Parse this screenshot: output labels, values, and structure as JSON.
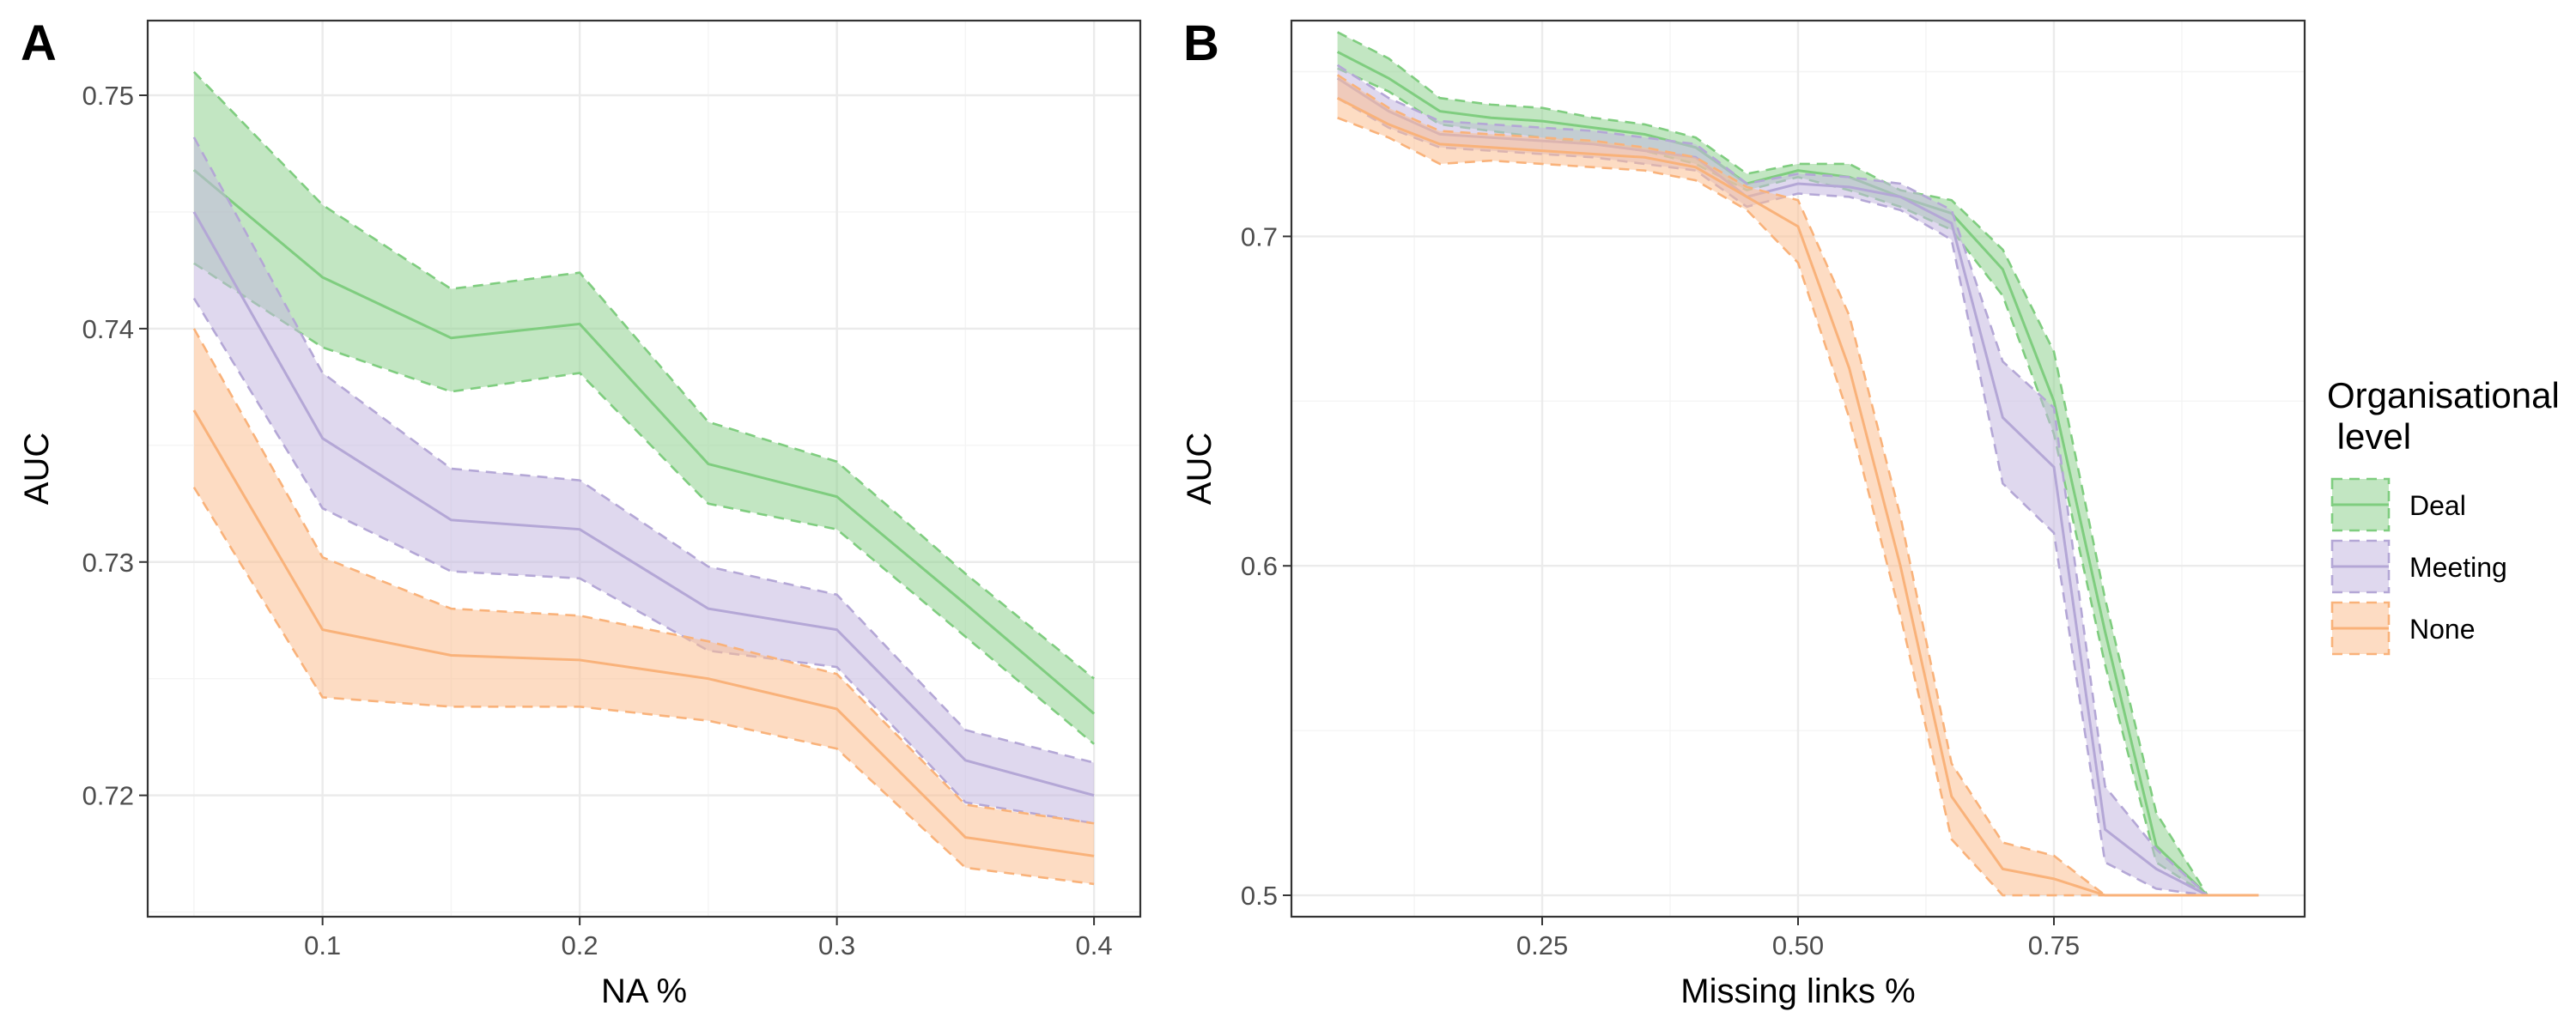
{
  "chart_data": [
    {
      "type": "line",
      "panel_label": "A",
      "title": "",
      "xlabel": "NA %",
      "ylabel": "AUC",
      "xlim": [
        0.032,
        0.418
      ],
      "ylim": [
        0.7148,
        0.7532
      ],
      "xticks": [
        0.1,
        0.2,
        0.3,
        0.4
      ],
      "xtick_labels": [
        "0.1",
        "0.2",
        "0.3",
        "0.4"
      ],
      "yticks": [
        0.72,
        0.73,
        0.74,
        0.75
      ],
      "ytick_labels": [
        "0.72",
        "0.73",
        "0.74",
        "0.75"
      ],
      "grid": true,
      "x": [
        0.05,
        0.1,
        0.15,
        0.2,
        0.25,
        0.3,
        0.35,
        0.4
      ],
      "series": [
        {
          "name": "Deal",
          "values": [
            0.7468,
            0.7422,
            0.7396,
            0.7402,
            0.7342,
            0.7328,
            0.7282,
            0.7235
          ],
          "lower": [
            0.7428,
            0.7392,
            0.7373,
            0.7381,
            0.7325,
            0.7314,
            0.7268,
            0.7222
          ],
          "upper": [
            0.751,
            0.7453,
            0.7417,
            0.7424,
            0.736,
            0.7343,
            0.7295,
            0.725
          ]
        },
        {
          "name": "Meeting",
          "values": [
            0.745,
            0.7353,
            0.7318,
            0.7314,
            0.728,
            0.7271,
            0.7215,
            0.72
          ],
          "lower": [
            0.7413,
            0.7323,
            0.7296,
            0.7293,
            0.7262,
            0.7255,
            0.7197,
            0.7188
          ],
          "upper": [
            0.7482,
            0.7381,
            0.734,
            0.7335,
            0.7298,
            0.7286,
            0.7228,
            0.7214
          ]
        },
        {
          "name": "None",
          "values": [
            0.7365,
            0.7271,
            0.726,
            0.7258,
            0.725,
            0.7237,
            0.7182,
            0.7174
          ],
          "lower": [
            0.7332,
            0.7242,
            0.7238,
            0.7238,
            0.7232,
            0.722,
            0.7169,
            0.7162
          ],
          "upper": [
            0.74,
            0.7302,
            0.728,
            0.7277,
            0.7266,
            0.7252,
            0.7196,
            0.7188
          ]
        }
      ]
    },
    {
      "type": "line",
      "panel_label": "B",
      "title": "",
      "xlabel": "Missing links %",
      "ylabel": "AUC",
      "xlim": [
        0.005,
        0.995
      ],
      "ylim": [
        0.4935,
        0.7655
      ],
      "xticks": [
        0.25,
        0.5,
        0.75
      ],
      "xtick_labels": [
        "0.25",
        "0.50",
        "0.75"
      ],
      "yticks": [
        0.5,
        0.6,
        0.7
      ],
      "ytick_labels": [
        "0.5",
        "0.6",
        "0.7"
      ],
      "grid": true,
      "series": [
        {
          "name": "Deal",
          "x": [
            0.05,
            0.1,
            0.15,
            0.2,
            0.25,
            0.3,
            0.35,
            0.4,
            0.45,
            0.5,
            0.55,
            0.6,
            0.65,
            0.7,
            0.75,
            0.8,
            0.85,
            0.9
          ],
          "values": [
            0.756,
            0.748,
            0.738,
            0.736,
            0.735,
            0.733,
            0.731,
            0.727,
            0.716,
            0.72,
            0.718,
            0.712,
            0.707,
            0.69,
            0.65,
            0.58,
            0.515,
            0.5
          ],
          "lower": [
            0.751,
            0.744,
            0.734,
            0.732,
            0.73,
            0.728,
            0.726,
            0.722,
            0.714,
            0.718,
            0.714,
            0.709,
            0.702,
            0.682,
            0.64,
            0.57,
            0.51,
            0.5
          ],
          "upper": [
            0.762,
            0.754,
            0.742,
            0.74,
            0.739,
            0.736,
            0.734,
            0.73,
            0.719,
            0.722,
            0.722,
            0.714,
            0.711,
            0.696,
            0.665,
            0.59,
            0.525,
            0.5
          ]
        },
        {
          "name": "Meeting",
          "x": [
            0.05,
            0.1,
            0.15,
            0.2,
            0.25,
            0.3,
            0.35,
            0.4,
            0.45,
            0.5,
            0.55,
            0.6,
            0.65,
            0.7,
            0.75,
            0.8,
            0.85,
            0.9
          ],
          "values": [
            0.748,
            0.738,
            0.731,
            0.73,
            0.729,
            0.728,
            0.726,
            0.724,
            0.712,
            0.716,
            0.715,
            0.712,
            0.704,
            0.645,
            0.63,
            0.52,
            0.508,
            0.5
          ],
          "lower": [
            0.742,
            0.733,
            0.727,
            0.726,
            0.725,
            0.724,
            0.722,
            0.72,
            0.709,
            0.713,
            0.712,
            0.708,
            0.699,
            0.625,
            0.61,
            0.51,
            0.502,
            0.5
          ],
          "upper": [
            0.752,
            0.742,
            0.735,
            0.734,
            0.733,
            0.732,
            0.73,
            0.728,
            0.716,
            0.719,
            0.718,
            0.716,
            0.708,
            0.662,
            0.648,
            0.533,
            0.514,
            0.5
          ]
        },
        {
          "name": "None",
          "x": [
            0.05,
            0.1,
            0.15,
            0.2,
            0.25,
            0.3,
            0.35,
            0.4,
            0.45,
            0.5,
            0.55,
            0.6,
            0.65,
            0.7,
            0.75,
            0.8,
            0.85,
            0.9,
            0.95
          ],
          "values": [
            0.742,
            0.734,
            0.728,
            0.727,
            0.726,
            0.725,
            0.724,
            0.721,
            0.712,
            0.703,
            0.66,
            0.6,
            0.53,
            0.508,
            0.505,
            0.5,
            0.5,
            0.5,
            0.5
          ],
          "lower": [
            0.736,
            0.73,
            0.722,
            0.723,
            0.722,
            0.721,
            0.72,
            0.717,
            0.708,
            0.692,
            0.645,
            0.585,
            0.517,
            0.5,
            0.5,
            0.5,
            0.5,
            0.5,
            0.5
          ],
          "upper": [
            0.749,
            0.739,
            0.732,
            0.731,
            0.73,
            0.729,
            0.727,
            0.724,
            0.715,
            0.711,
            0.676,
            0.615,
            0.54,
            0.516,
            0.512,
            0.5,
            0.5,
            0.5,
            0.5
          ]
        }
      ]
    }
  ],
  "legend": {
    "title_line1": "Organisational",
    "title_line2": " level",
    "entries": [
      "Deal",
      "Meeting",
      "None"
    ]
  },
  "colors": {
    "Deal": {
      "line": "#7fcd7f",
      "fill": "#8fd18f",
      "fill_opacity": 0.55
    },
    "Meeting": {
      "line": "#b4a7d6",
      "fill": "#c4b8e0",
      "fill_opacity": 0.55
    },
    "None": {
      "line": "#f9b27a",
      "fill": "#fbc091",
      "fill_opacity": 0.55
    },
    "grid_major": "#ebebeb",
    "grid_minor": "#f4f4f4",
    "panel_border": "#333333",
    "tick_text": "#4d4d4d",
    "axis_title": "#000000"
  }
}
